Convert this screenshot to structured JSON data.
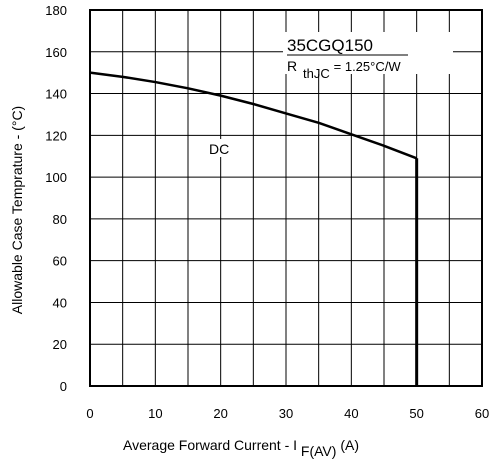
{
  "chart_data": {
    "type": "line",
    "title": "",
    "xlabel": {
      "main": "Average Forward Current  - I",
      "sub": "F(AV)",
      "unit": " (A)"
    },
    "ylabel": "Allowable Case Temprature - (°C)",
    "xlim": [
      0,
      60
    ],
    "ylim": [
      0,
      180
    ],
    "xticks": [
      0,
      10,
      20,
      30,
      40,
      50,
      60
    ],
    "yticks": [
      0,
      20,
      40,
      60,
      80,
      100,
      120,
      140,
      160,
      180
    ],
    "x_grid_step": 5,
    "y_grid_step": 20,
    "grid": true,
    "series": [
      {
        "name": "DC",
        "x": [
          0,
          5,
          10,
          15,
          20,
          25,
          30,
          35,
          40,
          45,
          50
        ],
        "y": [
          150,
          148,
          145.5,
          142.5,
          139,
          135,
          130.5,
          126,
          120.5,
          115,
          109
        ],
        "color": "#000000"
      }
    ],
    "drop_line": {
      "x": 50,
      "y_from": 109,
      "y_to": 0
    },
    "annotations": {
      "part_number": "35CGQ150",
      "rth_symbol": "R",
      "rth_sub": "thJC",
      "rth_value": " =  1.25°C/W",
      "curve_label": "DC"
    }
  }
}
